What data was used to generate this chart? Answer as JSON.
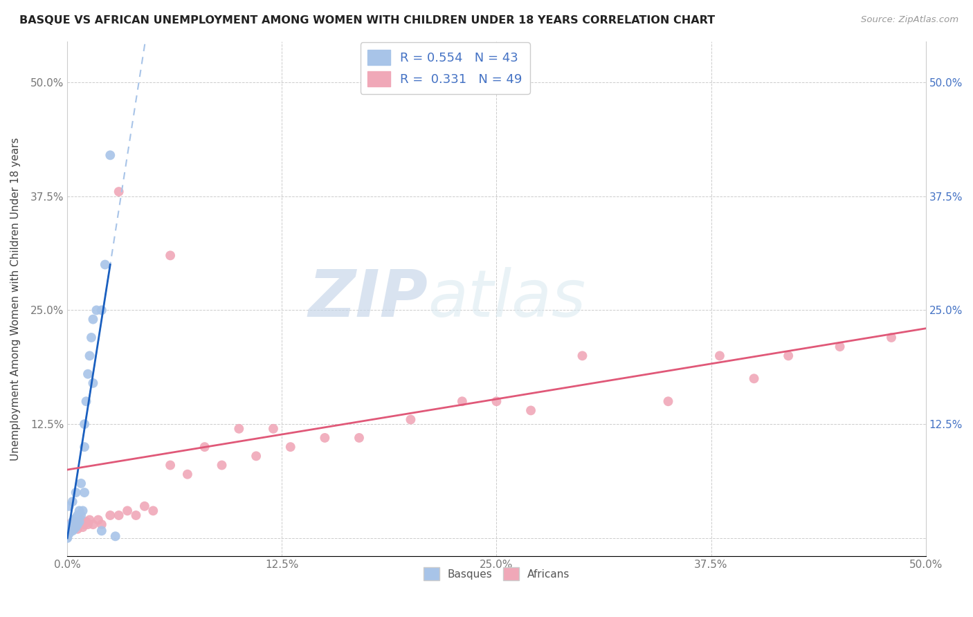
{
  "title": "BASQUE VS AFRICAN UNEMPLOYMENT AMONG WOMEN WITH CHILDREN UNDER 18 YEARS CORRELATION CHART",
  "source": "Source: ZipAtlas.com",
  "ylabel": "Unemployment Among Women with Children Under 18 years",
  "xlim": [
    0.0,
    0.5
  ],
  "ylim": [
    -0.02,
    0.545
  ],
  "xticks": [
    0.0,
    0.125,
    0.25,
    0.375,
    0.5
  ],
  "xticklabels": [
    "0.0%",
    "12.5%",
    "25.0%",
    "37.5%",
    "50.0%"
  ],
  "yticks": [
    0.0,
    0.125,
    0.25,
    0.375,
    0.5
  ],
  "yticklabels_left": [
    "",
    "12.5%",
    "25.0%",
    "37.5%",
    "50.0%"
  ],
  "yticklabels_right": [
    "",
    "12.5%",
    "25.0%",
    "37.5%",
    "50.0%"
  ],
  "basque_R": 0.554,
  "basque_N": 43,
  "african_R": 0.331,
  "african_N": 49,
  "basque_color": "#a8c4e8",
  "african_color": "#f0a8b8",
  "basque_line_color": "#1a5fbf",
  "african_line_color": "#e05878",
  "basque_line_dashed_color": "#a8c4e8",
  "watermark_zip": "ZIP",
  "watermark_atlas": "atlas",
  "basque_x": [
    0.0,
    0.0,
    0.0,
    0.0,
    0.0,
    0.0,
    0.0,
    0.0,
    0.001,
    0.001,
    0.002,
    0.002,
    0.003,
    0.003,
    0.004,
    0.004,
    0.005,
    0.005,
    0.006,
    0.006,
    0.007,
    0.007,
    0.008,
    0.009,
    0.01,
    0.01,
    0.011,
    0.012,
    0.013,
    0.014,
    0.015,
    0.017,
    0.02,
    0.022,
    0.025,
    0.028,
    0.01,
    0.008,
    0.015,
    0.02,
    0.005,
    0.003,
    0.001
  ],
  "basque_y": [
    0.0,
    0.001,
    0.002,
    0.003,
    0.004,
    0.005,
    0.007,
    0.009,
    0.005,
    0.01,
    0.008,
    0.015,
    0.008,
    0.018,
    0.01,
    0.02,
    0.012,
    0.022,
    0.015,
    0.025,
    0.018,
    0.03,
    0.025,
    0.03,
    0.05,
    0.1,
    0.15,
    0.18,
    0.2,
    0.22,
    0.24,
    0.25,
    0.25,
    0.3,
    0.42,
    0.002,
    0.125,
    0.06,
    0.17,
    0.008,
    0.05,
    0.04,
    0.035
  ],
  "african_x": [
    0.0,
    0.0,
    0.0,
    0.001,
    0.001,
    0.002,
    0.003,
    0.004,
    0.005,
    0.006,
    0.007,
    0.008,
    0.009,
    0.01,
    0.011,
    0.012,
    0.013,
    0.015,
    0.018,
    0.02,
    0.025,
    0.03,
    0.035,
    0.04,
    0.045,
    0.05,
    0.06,
    0.07,
    0.08,
    0.09,
    0.1,
    0.11,
    0.12,
    0.13,
    0.15,
    0.17,
    0.2,
    0.23,
    0.25,
    0.27,
    0.3,
    0.35,
    0.38,
    0.4,
    0.42,
    0.45,
    0.48,
    0.03,
    0.06
  ],
  "african_y": [
    0.005,
    0.01,
    0.015,
    0.008,
    0.012,
    0.01,
    0.015,
    0.012,
    0.018,
    0.01,
    0.015,
    0.02,
    0.012,
    0.015,
    0.018,
    0.015,
    0.02,
    0.015,
    0.02,
    0.015,
    0.025,
    0.025,
    0.03,
    0.025,
    0.035,
    0.03,
    0.08,
    0.07,
    0.1,
    0.08,
    0.12,
    0.09,
    0.12,
    0.1,
    0.11,
    0.11,
    0.13,
    0.15,
    0.15,
    0.14,
    0.2,
    0.15,
    0.2,
    0.175,
    0.2,
    0.21,
    0.22,
    0.38,
    0.31
  ],
  "basque_line_x": [
    0.0,
    0.028
  ],
  "basque_line_y_intercept": 0.0,
  "basque_line_slope": 12.0,
  "african_line_x": [
    0.0,
    0.5
  ],
  "african_line_y_start": 0.075,
  "african_line_y_end": 0.23
}
